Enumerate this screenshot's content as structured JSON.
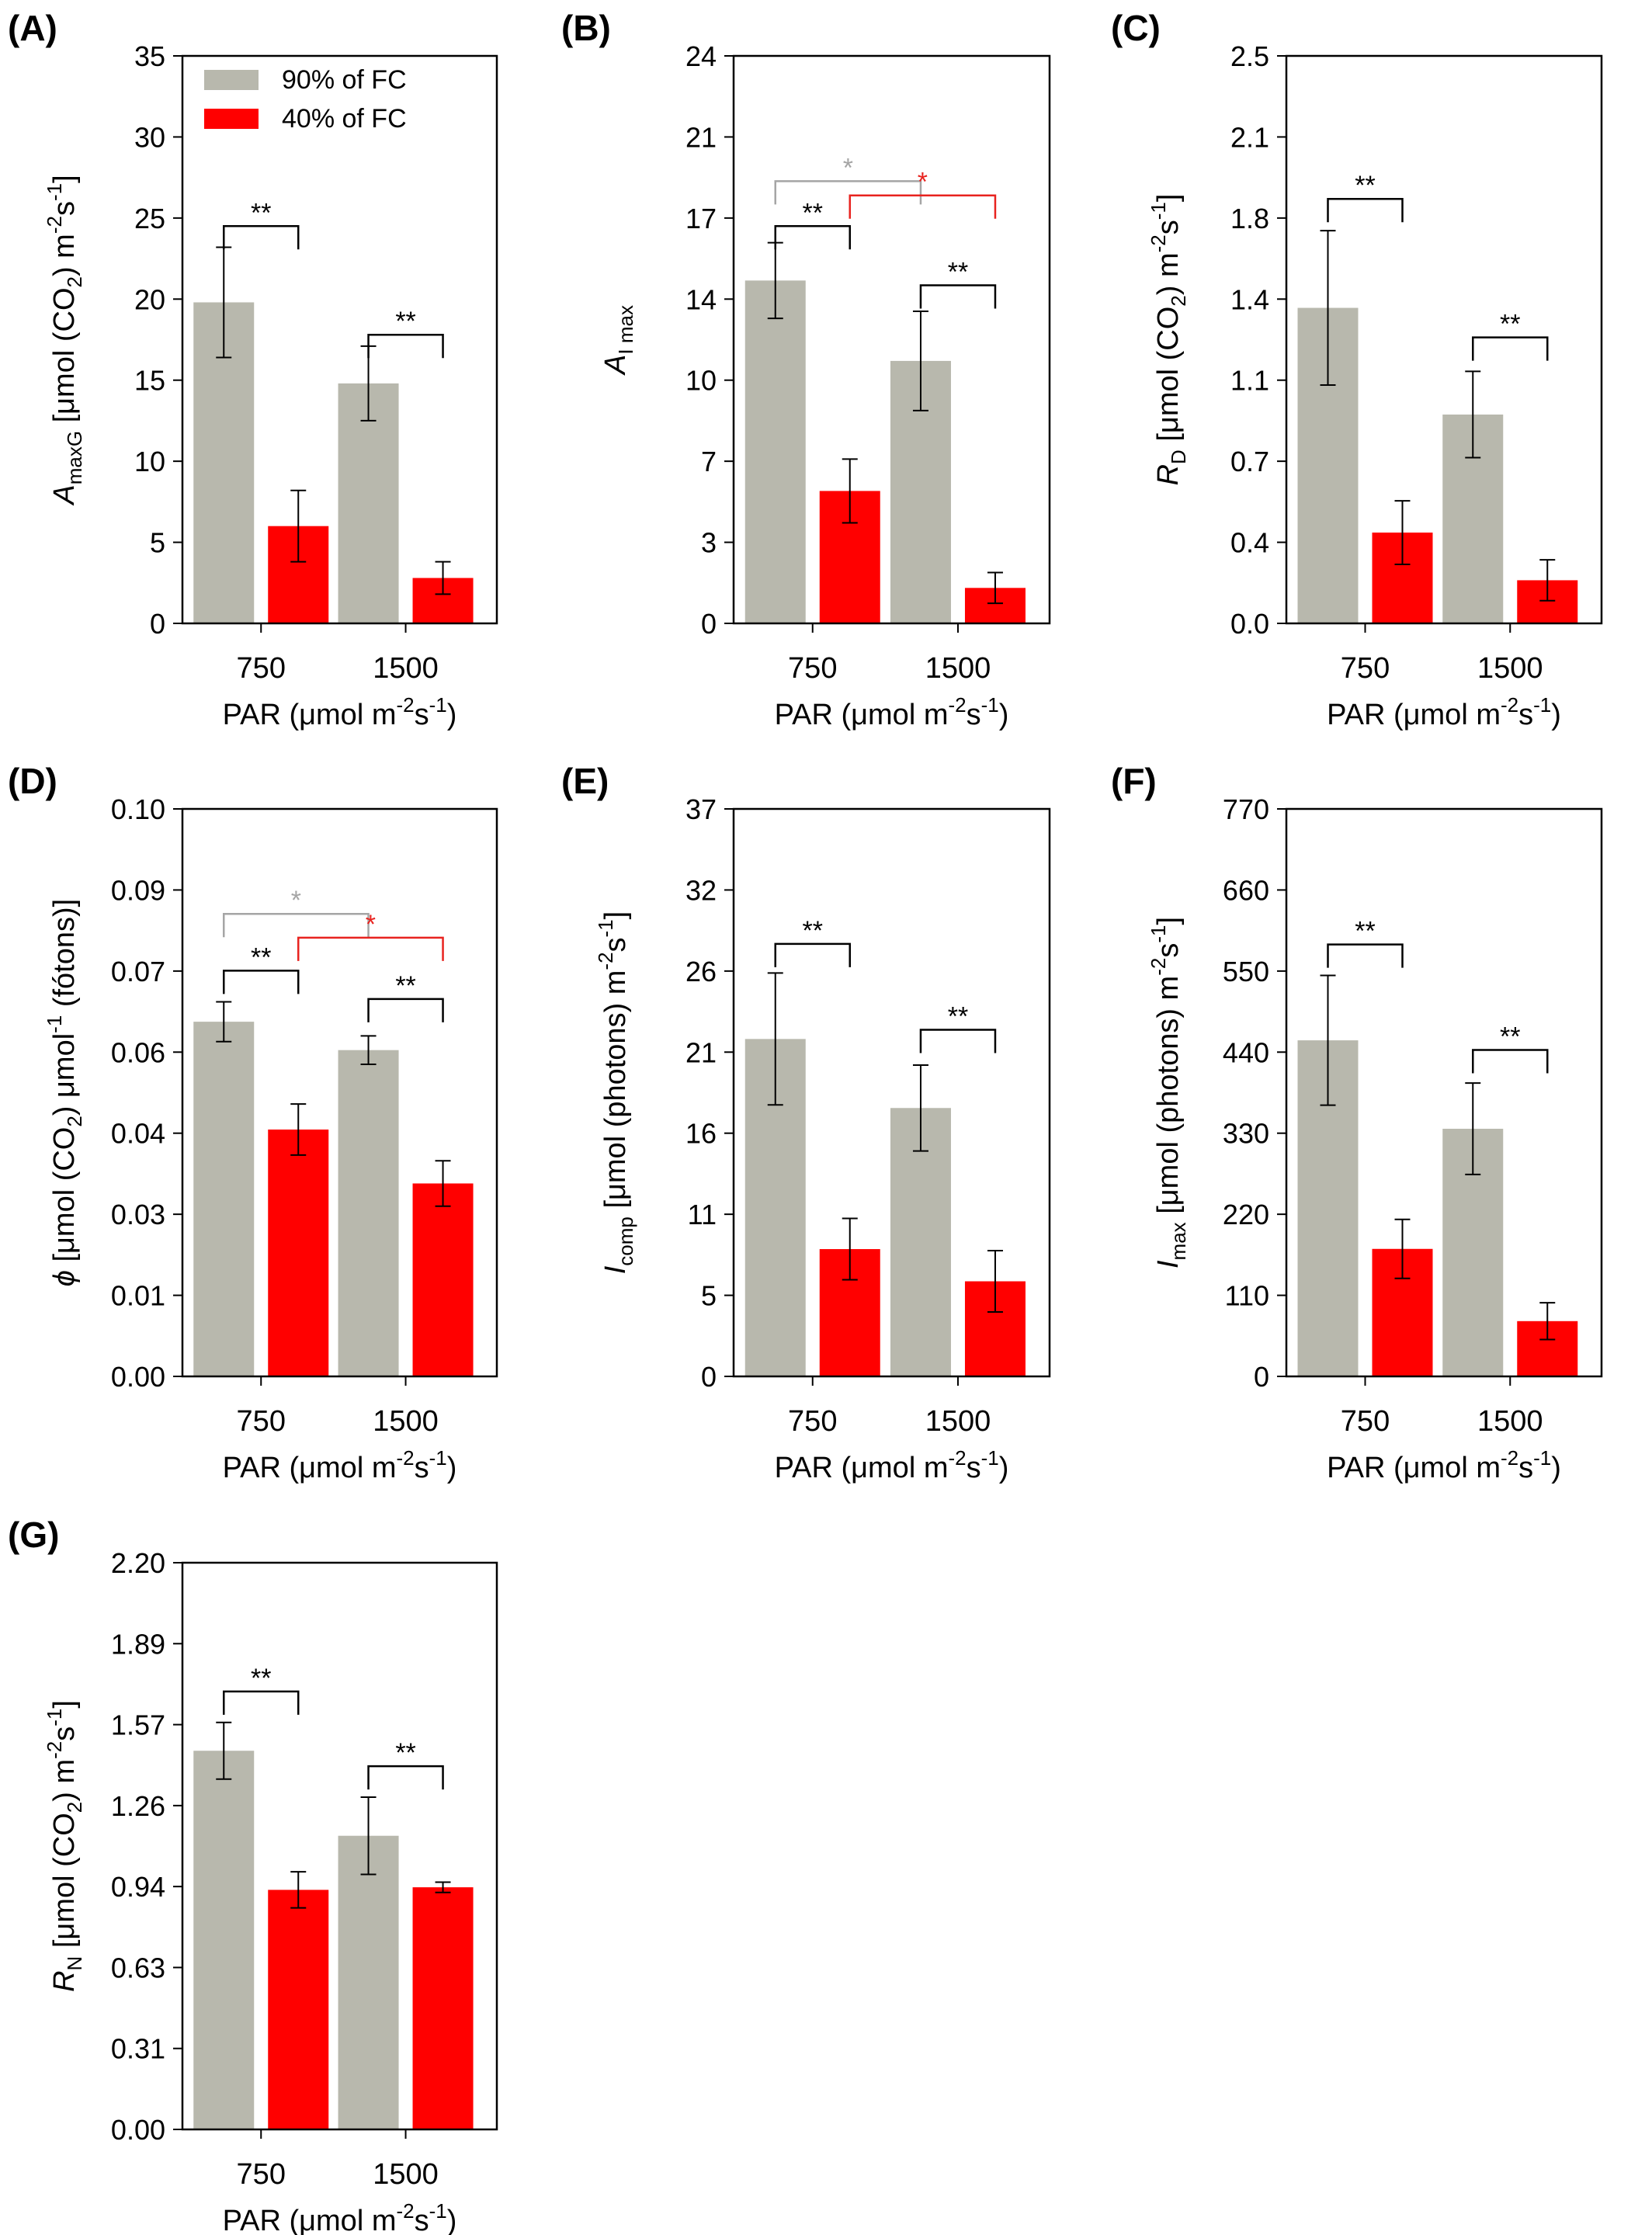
{
  "legend": {
    "position": "top-left inside panel A",
    "items": [
      {
        "label": "90% of FC",
        "color": "#b8b8ad"
      },
      {
        "label": "40% of FC",
        "color": "#ff0000"
      }
    ]
  },
  "colors": {
    "series_1": "#b8b8ad",
    "series_2": "#ff0000",
    "brackets": "#000000",
    "bracket_grey": "#a5a5a5",
    "bracket_red": "#e8231f"
  },
  "chart_data": [
    {
      "panel": "(A)",
      "type": "bar",
      "categories": [
        "750",
        "1500"
      ],
      "series": [
        {
          "name": "90% of FC",
          "values": [
            19.8,
            14.8
          ],
          "errors": [
            3.4,
            2.3
          ]
        },
        {
          "name": "40% of FC",
          "values": [
            6.0,
            2.8
          ],
          "errors": [
            2.2,
            1.0
          ]
        }
      ],
      "ylim": [
        0,
        35
      ],
      "yticks": [
        "0",
        "5",
        "10",
        "15",
        "20",
        "25",
        "30",
        "35"
      ],
      "ylabel": {
        "main": "A",
        "sub": "maxG",
        "rest": " [μmol (CO",
        "sub2": "2",
        "rest2": ") m",
        "sup": "-2",
        "rest3": "s",
        "sup2": "-1",
        "rest4": "]"
      },
      "xlabel": "PAR (μmol m^-2s^-1)",
      "brackets": [
        {
          "from": [
            0,
            0
          ],
          "to": [
            0,
            1
          ],
          "y": 24.5,
          "label": "**",
          "color": "#000000"
        },
        {
          "from": [
            1,
            0
          ],
          "to": [
            1,
            1
          ],
          "y": 17.8,
          "label": "**",
          "color": "#000000"
        }
      ]
    },
    {
      "panel": "(B)",
      "type": "bar",
      "categories": [
        "750",
        "1500"
      ],
      "series": [
        {
          "name": "90% of FC",
          "values": [
            14.5,
            11.1
          ],
          "errors": [
            1.6,
            2.1
          ]
        },
        {
          "name": "40% of FC",
          "values": [
            5.6,
            1.5
          ],
          "errors": [
            1.35,
            0.65
          ]
        }
      ],
      "ylim": [
        0,
        24
      ],
      "yticks": [
        "0",
        "3",
        "7",
        "10",
        "14",
        "17",
        "21",
        "24"
      ],
      "ylabel": {
        "main": "A",
        "sub": "I max",
        "rest": "",
        "sub2": "",
        "rest2": "",
        "sup": "",
        "rest3": "",
        "sup2": "",
        "rest4": ""
      },
      "xlabel": "PAR (μmol m^-2s^-1)",
      "brackets": [
        {
          "from": [
            0,
            0
          ],
          "to": [
            0,
            1
          ],
          "y": 16.8,
          "label": "**",
          "color": "#000000"
        },
        {
          "from": [
            1,
            0
          ],
          "to": [
            1,
            1
          ],
          "y": 14.3,
          "label": "**",
          "color": "#000000"
        },
        {
          "from": [
            0,
            0
          ],
          "to": [
            1,
            0
          ],
          "y": 18.7,
          "label": "*",
          "color": "#a5a5a5"
        },
        {
          "from": [
            0,
            1
          ],
          "to": [
            1,
            1
          ],
          "y": 18.1,
          "label": "*",
          "color": "#e8231f"
        }
      ]
    },
    {
      "panel": "(C)",
      "type": "bar",
      "categories": [
        "750",
        "1500"
      ],
      "series": [
        {
          "name": "90% of FC",
          "values": [
            1.39,
            0.92
          ],
          "errors": [
            0.34,
            0.19
          ]
        },
        {
          "name": "40% of FC",
          "values": [
            0.4,
            0.19
          ],
          "errors": [
            0.14,
            0.09
          ]
        }
      ],
      "ylim": [
        0,
        2.5
      ],
      "yticks": [
        "0.0",
        "0.4",
        "0.7",
        "1.1",
        "1.4",
        "1.8",
        "2.1",
        "2.5"
      ],
      "ylabel": {
        "main": "R",
        "sub": "D",
        "rest": " [μmol (CO",
        "sub2": "2",
        "rest2": ") m",
        "sup": "-2",
        "rest3": "s",
        "sup2": "-1",
        "rest4": "]"
      },
      "xlabel": "PAR (μmol m^-2s^-1)",
      "brackets": [
        {
          "from": [
            0,
            0
          ],
          "to": [
            0,
            1
          ],
          "y": 1.87,
          "label": "**",
          "color": "#000000"
        },
        {
          "from": [
            1,
            0
          ],
          "to": [
            1,
            1
          ],
          "y": 1.26,
          "label": "**",
          "color": "#000000"
        }
      ]
    },
    {
      "panel": "(D)",
      "type": "bar",
      "categories": [
        "750",
        "1500"
      ],
      "series": [
        {
          "name": "90% of FC",
          "values": [
            0.0625,
            0.0575
          ],
          "errors": [
            0.0035,
            0.0025
          ]
        },
        {
          "name": "40% of FC",
          "values": [
            0.0435,
            0.034
          ],
          "errors": [
            0.0045,
            0.004
          ]
        }
      ],
      "ylim": [
        0,
        0.1
      ],
      "yticks": [
        "0.00",
        "0.01",
        "0.03",
        "0.04",
        "0.06",
        "0.07",
        "0.09",
        "0.10"
      ],
      "ylabel": {
        "main": "ϕ",
        "sub": "",
        "rest": " [μmol (CO",
        "sub2": "2",
        "rest2": ") μmol",
        "sup": "-1",
        "rest3": " (fótons)]",
        "sup2": "",
        "rest4": ""
      },
      "xlabel": "PAR (μmol m^-2s^-1)",
      "brackets": [
        {
          "from": [
            0,
            0
          ],
          "to": [
            0,
            1
          ],
          "y": 0.0715,
          "label": "**",
          "color": "#000000"
        },
        {
          "from": [
            1,
            0
          ],
          "to": [
            1,
            1
          ],
          "y": 0.0665,
          "label": "**",
          "color": "#000000"
        },
        {
          "from": [
            0,
            0
          ],
          "to": [
            1,
            0
          ],
          "y": 0.0815,
          "label": "*",
          "color": "#a5a5a5"
        },
        {
          "from": [
            0,
            1
          ],
          "to": [
            1,
            1
          ],
          "y": 0.0773,
          "label": "*",
          "color": "#e8231f"
        }
      ]
    },
    {
      "panel": "(E)",
      "type": "bar",
      "categories": [
        "750",
        "1500"
      ],
      "series": [
        {
          "name": "90% of FC",
          "values": [
            22.0,
            17.5
          ],
          "errors": [
            4.3,
            2.8
          ]
        },
        {
          "name": "40% of FC",
          "values": [
            8.3,
            6.2
          ],
          "errors": [
            2.0,
            2.0
          ]
        }
      ],
      "ylim": [
        0,
        37
      ],
      "yticks": [
        "0",
        "5",
        "11",
        "16",
        "21",
        "26",
        "32",
        "37"
      ],
      "ylabel": {
        "main": "I",
        "sub": "comp",
        "rest": " [μmol (photons) m",
        "sub2": "",
        "rest2": "",
        "sup": "-2",
        "rest3": "s",
        "sup2": "-1",
        "rest4": "]"
      },
      "xlabel": "PAR (μmol m^-2s^-1)",
      "brackets": [
        {
          "from": [
            0,
            0
          ],
          "to": [
            0,
            1
          ],
          "y": 28.2,
          "label": "**",
          "color": "#000000"
        },
        {
          "from": [
            1,
            0
          ],
          "to": [
            1,
            1
          ],
          "y": 22.6,
          "label": "**",
          "color": "#000000"
        }
      ]
    },
    {
      "panel": "(F)",
      "type": "bar",
      "categories": [
        "750",
        "1500"
      ],
      "series": [
        {
          "name": "90% of FC",
          "values": [
            456,
            336
          ],
          "errors": [
            88,
            62
          ]
        },
        {
          "name": "40% of FC",
          "values": [
            173,
            75
          ],
          "errors": [
            40,
            25
          ]
        }
      ],
      "ylim": [
        0,
        770
      ],
      "yticks": [
        "0",
        "110",
        "220",
        "330",
        "440",
        "550",
        "660",
        "770"
      ],
      "ylabel": {
        "main": "I",
        "sub": "max",
        "rest": " [μmol (photons) m",
        "sub2": "",
        "rest2": "",
        "sup": "-2",
        "rest3": "s",
        "sup2": "-1",
        "rest4": "]"
      },
      "xlabel": "PAR (μmol m^-2s^-1)",
      "brackets": [
        {
          "from": [
            0,
            0
          ],
          "to": [
            0,
            1
          ],
          "y": 586,
          "label": "**",
          "color": "#000000"
        },
        {
          "from": [
            1,
            0
          ],
          "to": [
            1,
            1
          ],
          "y": 443,
          "label": "**",
          "color": "#000000"
        }
      ]
    },
    {
      "panel": "(G)",
      "type": "bar",
      "categories": [
        "750",
        "1500"
      ],
      "series": [
        {
          "name": "90% of FC",
          "values": [
            1.47,
            1.14
          ],
          "errors": [
            0.11,
            0.15
          ]
        },
        {
          "name": "40% of FC",
          "values": [
            0.93,
            0.94
          ],
          "errors": [
            0.07,
            0.02
          ]
        }
      ],
      "ylim": [
        0,
        2.2
      ],
      "yticks": [
        "0.00",
        "0.31",
        "0.63",
        "0.94",
        "1.26",
        "1.57",
        "1.89",
        "2.20"
      ],
      "ylabel": {
        "main": "R",
        "sub": "N",
        "rest": " [μmol (CO",
        "sub2": "2",
        "rest2": ") m",
        "sup": "-2",
        "rest3": "s",
        "sup2": "-1",
        "rest4": "]"
      },
      "xlabel": "PAR (μmol m^-2s^-1)",
      "brackets": [
        {
          "from": [
            0,
            0
          ],
          "to": [
            0,
            1
          ],
          "y": 1.7,
          "label": "**",
          "color": "#000000"
        },
        {
          "from": [
            1,
            0
          ],
          "to": [
            1,
            1
          ],
          "y": 1.41,
          "label": "**",
          "color": "#000000"
        }
      ]
    }
  ]
}
